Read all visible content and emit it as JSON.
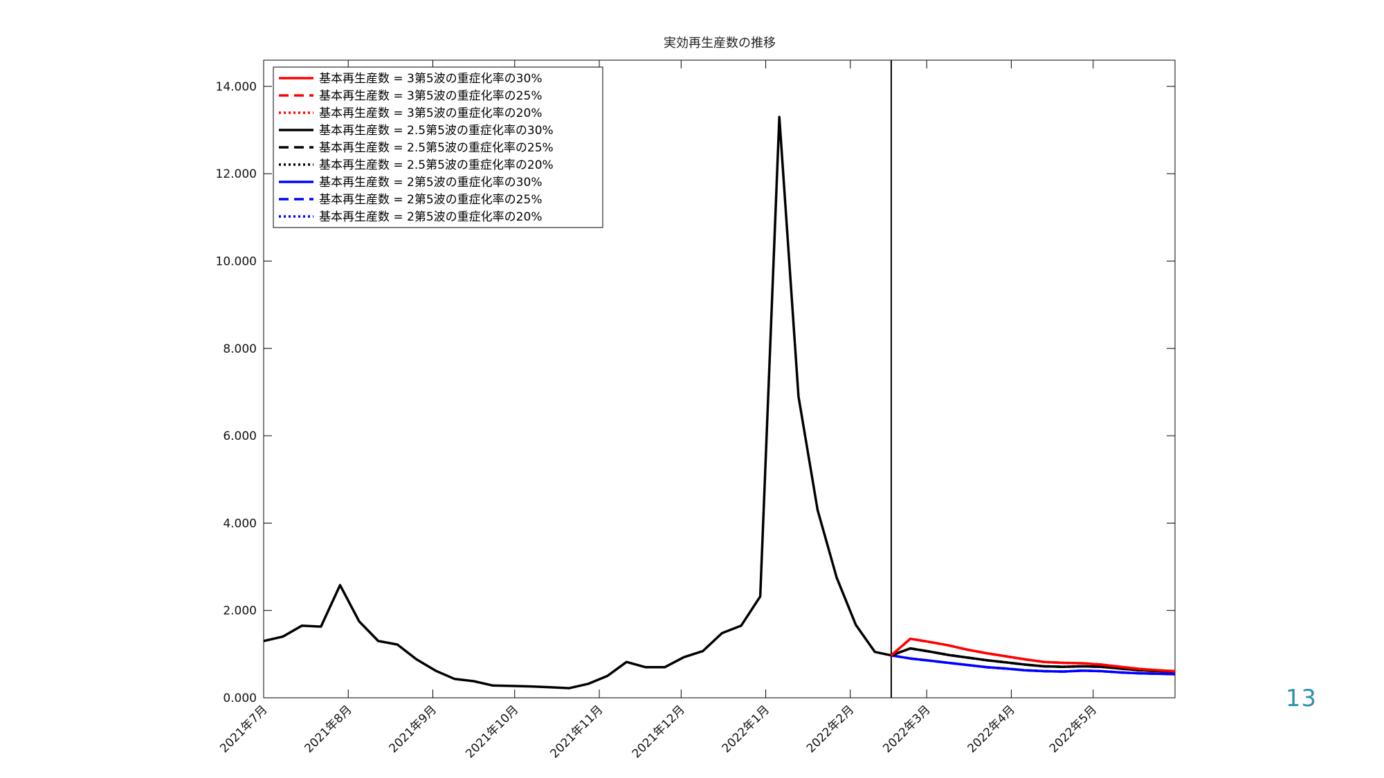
{
  "slide": {
    "page_number": "13"
  },
  "chart_data": {
    "type": "line",
    "title": "実効再生産数の推移",
    "xlabel": "",
    "ylabel": "",
    "ylim": [
      0,
      14.6
    ],
    "yticks": [
      0,
      2,
      4,
      6,
      8,
      10,
      12,
      14
    ],
    "ytick_labels": [
      "0.000",
      "2.000",
      "4.000",
      "6.000",
      "8.000",
      "10.000",
      "12.000",
      "14.000"
    ],
    "xlim": [
      "2021-07-01",
      "2022-05-31"
    ],
    "xticks": [
      "2021-08-01",
      "2021-09-01",
      "2021-10-01",
      "2021-11-01",
      "2021-12-01",
      "2022-01-01",
      "2022-02-01",
      "2022-03-01",
      "2022-04-01",
      "2022-05-01"
    ],
    "xtick_labels": [
      "2021年7月",
      "2021年8月",
      "2021年9月",
      "2021年10月",
      "2021年11月",
      "2021年12月",
      "2022年1月",
      "2022年2月",
      "2022年3月",
      "2022年4月",
      "2022年5月"
    ],
    "xtick_label_dates": [
      "2021-07-01",
      "2021-08-01",
      "2021-09-01",
      "2021-10-01",
      "2021-11-01",
      "2021-12-01",
      "2022-01-01",
      "2022-02-01",
      "2022-03-01",
      "2022-04-01",
      "2022-05-01"
    ],
    "vertical_line": "2022-02-16",
    "grid": false,
    "legend_position": "top-left",
    "history": {
      "x": [
        "2021-07-01",
        "2021-07-08",
        "2021-07-15",
        "2021-07-22",
        "2021-07-29",
        "2021-08-05",
        "2021-08-12",
        "2021-08-19",
        "2021-08-26",
        "2021-09-02",
        "2021-09-09",
        "2021-09-16",
        "2021-09-23",
        "2021-09-30",
        "2021-10-07",
        "2021-10-14",
        "2021-10-21",
        "2021-10-28",
        "2021-11-04",
        "2021-11-11",
        "2021-11-18",
        "2021-11-25",
        "2021-12-02",
        "2021-12-09",
        "2021-12-16",
        "2021-12-23",
        "2021-12-30",
        "2022-01-06",
        "2022-01-13",
        "2022-01-20",
        "2022-01-27",
        "2022-02-03",
        "2022-02-10",
        "2022-02-16"
      ],
      "values": [
        1.3,
        1.4,
        1.65,
        1.63,
        2.58,
        1.75,
        1.3,
        1.22,
        0.88,
        0.62,
        0.43,
        0.38,
        0.28,
        0.27,
        0.26,
        0.24,
        0.22,
        0.32,
        0.5,
        0.82,
        0.7,
        0.7,
        0.93,
        1.07,
        1.48,
        1.65,
        2.32,
        13.3,
        6.9,
        4.3,
        2.75,
        1.67,
        1.05,
        0.97
      ]
    },
    "projection_x": [
      "2022-02-16",
      "2022-02-23",
      "2022-03-02",
      "2022-03-09",
      "2022-03-16",
      "2022-03-23",
      "2022-03-30",
      "2022-04-06",
      "2022-04-13",
      "2022-04-20",
      "2022-04-27",
      "2022-05-04",
      "2022-05-11",
      "2022-05-18",
      "2022-05-25",
      "2022-05-31"
    ],
    "series": [
      {
        "name": "基本再生産数 = 3第5波の重症化率の30%",
        "color": "#ff0000",
        "style": "solid",
        "values": [
          0.97,
          1.35,
          1.28,
          1.2,
          1.1,
          1.02,
          0.95,
          0.88,
          0.82,
          0.8,
          0.79,
          0.76,
          0.71,
          0.66,
          0.63,
          0.61
        ]
      },
      {
        "name": "基本再生産数 = 3第5波の重症化率の25%",
        "color": "#ff0000",
        "style": "dashed",
        "values": [
          0.97,
          1.35,
          1.28,
          1.2,
          1.1,
          1.02,
          0.95,
          0.88,
          0.82,
          0.8,
          0.79,
          0.76,
          0.71,
          0.66,
          0.63,
          0.61
        ]
      },
      {
        "name": "基本再生産数 = 3第5波の重症化率の20%",
        "color": "#ff0000",
        "style": "dotted",
        "values": [
          0.97,
          1.35,
          1.28,
          1.2,
          1.1,
          1.02,
          0.95,
          0.88,
          0.82,
          0.8,
          0.79,
          0.76,
          0.71,
          0.66,
          0.63,
          0.61
        ]
      },
      {
        "name": "基本再生産数 = 2.5第5波の重症化率の30%",
        "color": "#000000",
        "style": "solid",
        "values": [
          0.97,
          1.13,
          1.06,
          0.98,
          0.92,
          0.86,
          0.81,
          0.76,
          0.72,
          0.71,
          0.72,
          0.71,
          0.67,
          0.63,
          0.61,
          0.6
        ]
      },
      {
        "name": "基本再生産数 = 2.5第5波の重症化率の25%",
        "color": "#000000",
        "style": "dashed",
        "values": [
          0.97,
          1.13,
          1.06,
          0.98,
          0.92,
          0.86,
          0.81,
          0.76,
          0.72,
          0.71,
          0.72,
          0.71,
          0.67,
          0.63,
          0.61,
          0.6
        ]
      },
      {
        "name": "基本再生産数 = 2.5第5波の重症化率の20%",
        "color": "#000000",
        "style": "dotted",
        "values": [
          0.97,
          1.13,
          1.06,
          0.98,
          0.92,
          0.86,
          0.81,
          0.76,
          0.72,
          0.71,
          0.72,
          0.71,
          0.67,
          0.63,
          0.61,
          0.6
        ]
      },
      {
        "name": "基本再生産数 = 2第5波の重症化率の30%",
        "color": "#0000ff",
        "style": "solid",
        "values": [
          0.97,
          0.9,
          0.85,
          0.8,
          0.75,
          0.7,
          0.67,
          0.63,
          0.61,
          0.6,
          0.62,
          0.61,
          0.58,
          0.56,
          0.55,
          0.54
        ]
      },
      {
        "name": "基本再生産数 = 2第5波の重症化率の25%",
        "color": "#0000ff",
        "style": "dashed",
        "values": [
          0.97,
          0.9,
          0.85,
          0.8,
          0.75,
          0.7,
          0.67,
          0.63,
          0.61,
          0.6,
          0.62,
          0.61,
          0.58,
          0.56,
          0.55,
          0.54
        ]
      },
      {
        "name": "基本再生産数 = 2第5波の重症化率の20%",
        "color": "#0000ff",
        "style": "dotted",
        "values": [
          0.97,
          0.9,
          0.85,
          0.8,
          0.75,
          0.7,
          0.67,
          0.63,
          0.61,
          0.6,
          0.62,
          0.61,
          0.58,
          0.56,
          0.55,
          0.54
        ]
      }
    ],
    "history_color": "#000000"
  }
}
